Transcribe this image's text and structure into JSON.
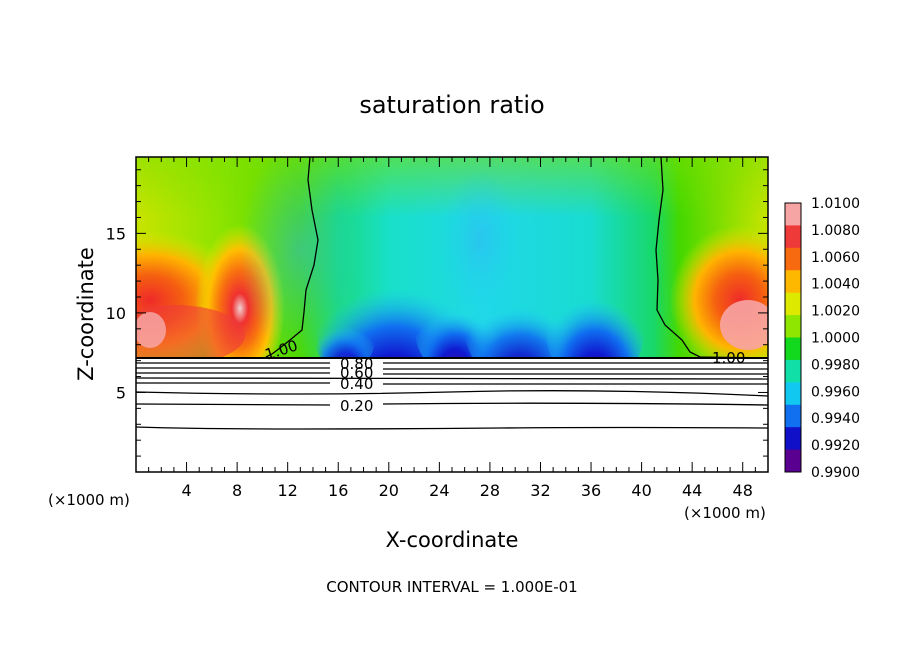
{
  "chart_data": {
    "type": "heatmap",
    "title": "saturation ratio",
    "xlabel": "X-coordinate",
    "ylabel": "Z-coordinate",
    "x_unit_left": "(×1000 m)",
    "x_unit_right": "(×1000 m)",
    "xlim": [
      0,
      50
    ],
    "ylim": [
      0,
      19.8
    ],
    "x_ticks": [
      "4",
      "8",
      "12",
      "16",
      "20",
      "24",
      "28",
      "32",
      "36",
      "40",
      "44",
      "48"
    ],
    "y_ticks": [
      "5",
      "10",
      "15"
    ],
    "colorbar": {
      "levels": [
        "1.0100",
        "1.0080",
        "1.0060",
        "1.0040",
        "1.0020",
        "1.0000",
        "0.9980",
        "0.9960",
        "0.9940",
        "0.9920",
        "0.9900"
      ],
      "colors": [
        "#f7a4a4",
        "#ef3a3a",
        "#f86a10",
        "#ffb800",
        "#ddea00",
        "#8fe600",
        "#12d81e",
        "#10e0a8",
        "#10c8f0",
        "#1070f0",
        "#1010c8",
        "#5a0090"
      ]
    },
    "contour_labels": [
      "1.00",
      "1.00",
      "0.80",
      "0.60",
      "0.40",
      "0.20"
    ],
    "contour_interval": "CONTOUR INTERVAL = 1.000E-01"
  }
}
